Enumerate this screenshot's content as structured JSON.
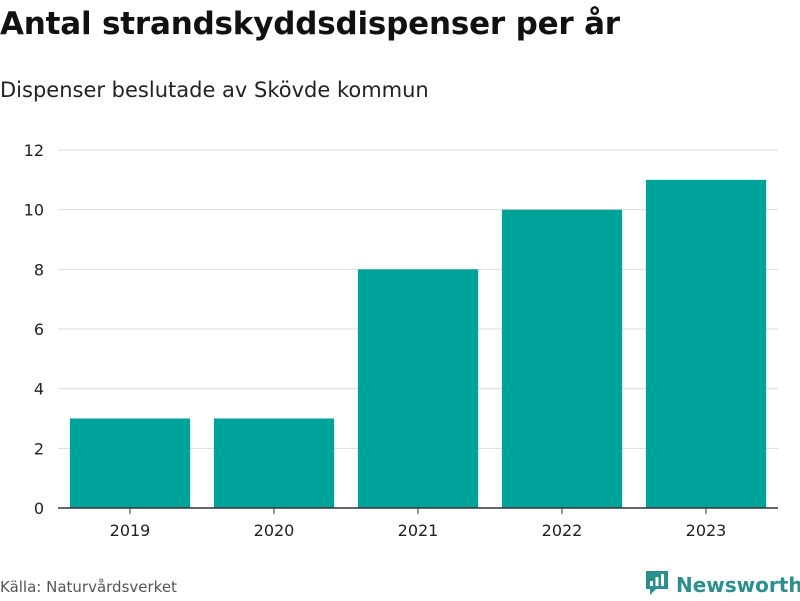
{
  "header": {
    "title": "Antal strandskyddsdispenser per år",
    "subtitle": "Dispenser beslutade av Skövde kommun"
  },
  "footer": {
    "source": "Källa: Naturvårdsverket",
    "brand": "Newsworthy",
    "brand_icon": "newsworthy-logo-icon"
  },
  "colors": {
    "bar": "#00a39a",
    "grid": "#dddddd",
    "axis": "#333333",
    "brand": "#2a8f8d"
  },
  "chart_data": {
    "type": "bar",
    "title": "Antal strandskyddsdispenser per år",
    "subtitle": "Dispenser beslutade av Skövde kommun",
    "categories": [
      "2019",
      "2020",
      "2021",
      "2022",
      "2023"
    ],
    "values": [
      3,
      3,
      8,
      10,
      11
    ],
    "xlabel": "",
    "ylabel": "",
    "ylim": [
      0,
      12
    ],
    "yticks": [
      0,
      2,
      4,
      6,
      8,
      10,
      12
    ],
    "grid": true,
    "legend": "none"
  }
}
